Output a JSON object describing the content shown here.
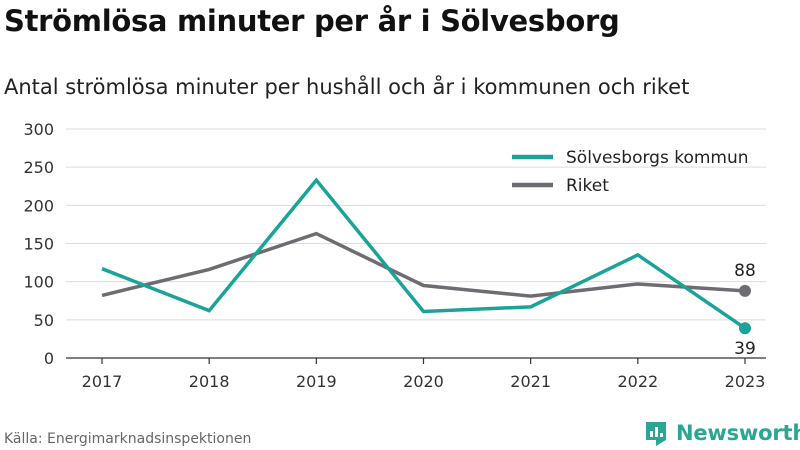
{
  "header": {
    "title": "Strömlösa minuter per år i Sölvesborg",
    "subtitle": "Antal strömlösa minuter per hushåll och år i kommunen och riket"
  },
  "footer": {
    "source": "Källa: Energimarknadsinspektionen",
    "brand": "Newsworthy"
  },
  "colors": {
    "teal": "#1aa398",
    "gray": "#6e6c72",
    "grid": "#dcdcdc",
    "axis": "#333333",
    "brand": "#2aa693"
  },
  "icons": {
    "brand_logo": "newsworthy-logo-icon"
  },
  "chart_data": {
    "type": "line",
    "x": [
      "2017",
      "2018",
      "2019",
      "2020",
      "2021",
      "2022",
      "2023"
    ],
    "ylim": [
      0,
      300
    ],
    "yticks": [
      "0",
      "50",
      "100",
      "150",
      "200",
      "250",
      "300"
    ],
    "grid": true,
    "legend_position": "top-right",
    "series": [
      {
        "name": "Sölvesborgs kommun",
        "color": "#1aa398",
        "values": [
          117,
          62,
          233,
          61,
          67,
          135,
          39
        ],
        "end_label": "39"
      },
      {
        "name": "Riket",
        "color": "#6e6c72",
        "values": [
          82,
          116,
          163,
          95,
          81,
          97,
          88
        ],
        "end_label": "88"
      }
    ]
  }
}
